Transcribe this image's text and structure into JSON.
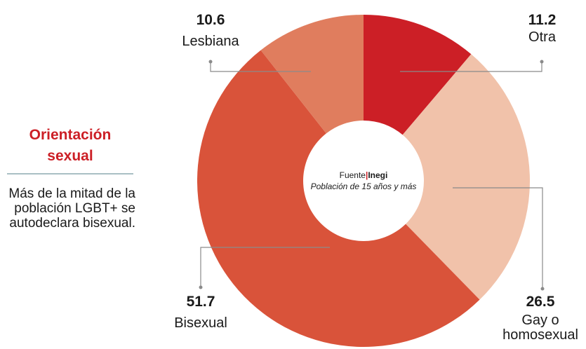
{
  "chart_data": {
    "type": "donut",
    "title": "Orientación sexual",
    "description": "Más de la mitad de la población LGBT+ se autodeclara bisexual.",
    "source_label": "Fuente",
    "source": "Inegi",
    "subtitle": "Población de 15 años y más",
    "categories": [
      "Otra",
      "Gay o homosexual",
      "Bisexual",
      "Lesbiana"
    ],
    "values": [
      11.2,
      26.5,
      51.7,
      10.6
    ],
    "colors": [
      "#cc1f26",
      "#f1c2aa",
      "#d9533a",
      "#e07d5e"
    ]
  }
}
